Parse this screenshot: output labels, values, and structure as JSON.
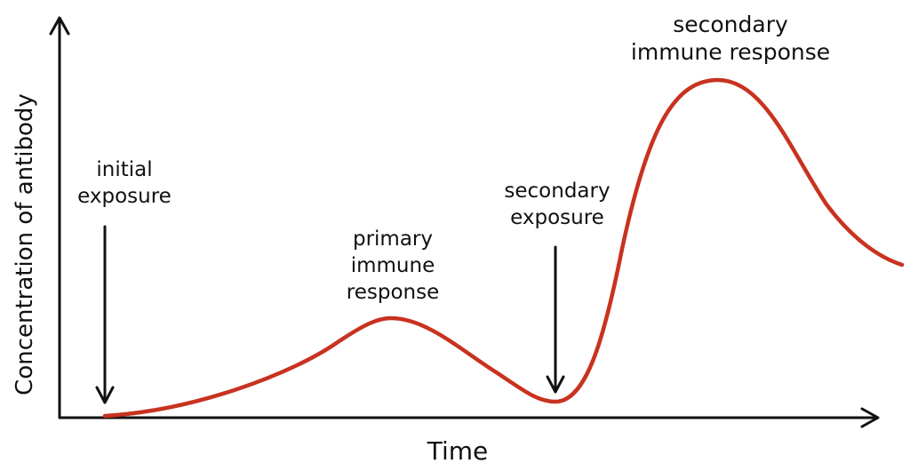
{
  "axes": {
    "y_label": "Concentration of antibody",
    "x_label": "Time"
  },
  "annotations": [
    {
      "lines": [
        "initial",
        "exposure"
      ]
    },
    {
      "lines": [
        "primary",
        "immune",
        "response"
      ]
    },
    {
      "lines": [
        "secondary",
        "exposure"
      ]
    },
    {
      "lines": [
        "secondary",
        "immune response"
      ]
    }
  ]
}
